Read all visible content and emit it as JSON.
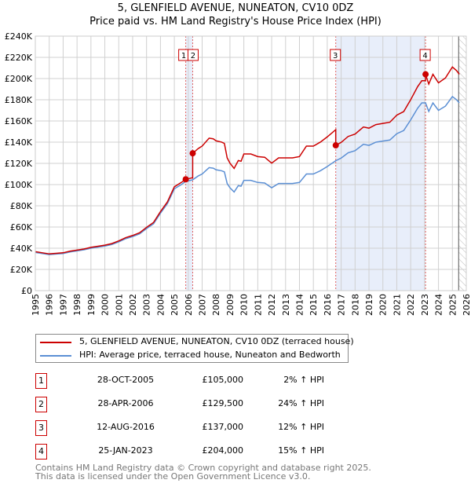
{
  "chart_data": {
    "type": "line",
    "title": "5, GLENFIELD AVENUE, NUNEATON, CV10 0DZ",
    "subtitle": "Price paid vs. HM Land Registry's House Price Index (HPI)",
    "xlim": [
      1995,
      2026
    ],
    "ylim": [
      0,
      240000
    ],
    "x_ticks": [
      "1995",
      "1996",
      "1997",
      "1998",
      "1999",
      "2000",
      "2001",
      "2002",
      "2003",
      "2004",
      "2005",
      "2006",
      "2007",
      "2008",
      "2009",
      "2010",
      "2011",
      "2012",
      "2013",
      "2014",
      "2015",
      "2016",
      "2017",
      "2018",
      "2019",
      "2020",
      "2021",
      "2022",
      "2023",
      "2024",
      "2025",
      "2026"
    ],
    "y_ticks": [
      {
        "v": 0,
        "label": "£0"
      },
      {
        "v": 20000,
        "label": "£20K"
      },
      {
        "v": 40000,
        "label": "£40K"
      },
      {
        "v": 60000,
        "label": "£60K"
      },
      {
        "v": 80000,
        "label": "£80K"
      },
      {
        "v": 100000,
        "label": "£100K"
      },
      {
        "v": 120000,
        "label": "£120K"
      },
      {
        "v": 140000,
        "label": "£140K"
      },
      {
        "v": 160000,
        "label": "£160K"
      },
      {
        "v": 180000,
        "label": "£180K"
      },
      {
        "v": 200000,
        "label": "£200K"
      },
      {
        "v": 220000,
        "label": "£220K"
      },
      {
        "v": 240000,
        "label": "£240K"
      }
    ],
    "grid": true,
    "colors": {
      "property": "#cc0000",
      "hpi": "#5b8fd4",
      "shade": "#e8eefa",
      "marker_line": "#e06060"
    },
    "hpi_series": {
      "x": [
        1995,
        1995.5,
        1996,
        1996.5,
        1997,
        1997.5,
        1998,
        1998.5,
        1999,
        1999.5,
        2000,
        2000.5,
        2001,
        2001.5,
        2002,
        2002.5,
        2003,
        2003.5,
        2004,
        2004.5,
        2005,
        2005.5,
        2005.82,
        2006,
        2006.32,
        2006.7,
        2007,
        2007.5,
        2007.8,
        2008,
        2008.4,
        2008.6,
        2008.8,
        2009,
        2009.3,
        2009.6,
        2009.8,
        2010,
        2010.5,
        2011,
        2011.5,
        2012,
        2012.5,
        2013,
        2013.5,
        2014,
        2014.5,
        2015,
        2015.5,
        2016,
        2016.61,
        2017,
        2017.5,
        2018,
        2018.6,
        2019,
        2019.5,
        2020,
        2020.5,
        2021,
        2021.5,
        2022,
        2022.5,
        2022.8,
        2023.07,
        2023.3,
        2023.6,
        2024,
        2024.5,
        2025,
        2025.3,
        2025.5
      ],
      "y": [
        36000,
        35000,
        34000,
        34500,
        35000,
        36500,
        37500,
        38500,
        40000,
        41000,
        42000,
        43500,
        46000,
        49000,
        51000,
        53500,
        58500,
        63000,
        73000,
        82000,
        96000,
        100000,
        103000,
        103500,
        104500,
        108000,
        110000,
        116000,
        115500,
        114000,
        113000,
        112000,
        101000,
        97000,
        93000,
        99000,
        98500,
        104000,
        104000,
        102000,
        101500,
        97000,
        101000,
        101000,
        101000,
        102000,
        110000,
        110000,
        113000,
        117000,
        122500,
        125000,
        130000,
        132000,
        138000,
        137000,
        140000,
        141000,
        142000,
        148000,
        151000,
        161000,
        172000,
        177000,
        177000,
        169000,
        177000,
        170000,
        174000,
        183000,
        180000,
        177000
      ]
    },
    "sales": [
      {
        "n": "1",
        "date": "28-OCT-2005",
        "x": 2005.82,
        "price": 105000,
        "price_label": "£105,000",
        "hpi_label": "2% ↑ HPI"
      },
      {
        "n": "2",
        "date": "28-APR-2006",
        "x": 2006.32,
        "price": 129500,
        "price_label": "£129,500",
        "hpi_label": "24% ↑ HPI"
      },
      {
        "n": "3",
        "date": "12-AUG-2016",
        "x": 2016.61,
        "price": 137000,
        "price_label": "£137,000",
        "hpi_label": "12% ↑ HPI"
      },
      {
        "n": "4",
        "date": "25-JAN-2023",
        "x": 2023.07,
        "price": 204000,
        "price_label": "£204,000",
        "hpi_label": "15% ↑ HPI"
      }
    ],
    "legend": {
      "placement": "below",
      "property": "5, GLENFIELD AVENUE, NUNEATON, CV10 0DZ (terraced house)",
      "hpi": "HPI: Average price, terraced house, Nuneaton and Bedworth"
    }
  },
  "footer": {
    "line1": "Contains HM Land Registry data © Crown copyright and database right 2025.",
    "line2": "This data is licensed under the Open Government Licence v3.0."
  }
}
